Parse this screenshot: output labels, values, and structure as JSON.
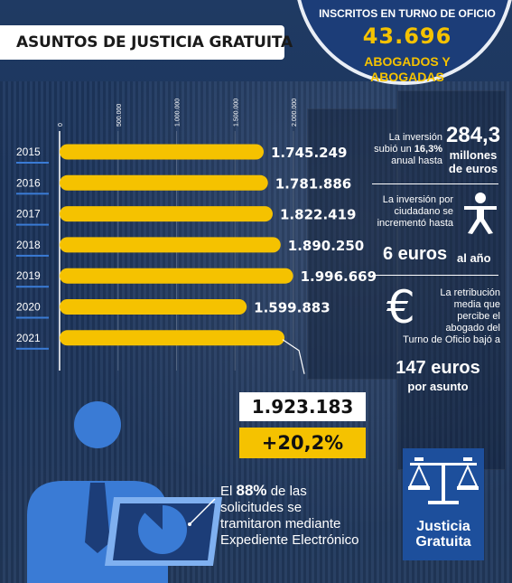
{
  "title": "ASUNTOS DE JUSTICIA GRATUITA",
  "header_circle": {
    "label": "INSCRITOS EN TURNO DE OFICIO",
    "number": "43.696",
    "sub1": "ABOGADOS Y",
    "sub2": "ABOGADAS"
  },
  "chart_data": {
    "type": "bar",
    "orientation": "horizontal",
    "categories": [
      "2015",
      "2016",
      "2017",
      "2018",
      "2019",
      "2020",
      "2021"
    ],
    "values": [
      1745249,
      1781886,
      1822419,
      1890250,
      1996669,
      1599883,
      1923183
    ],
    "value_labels": [
      "1.745.249",
      "1.781.886",
      "1.822.419",
      "1.890.250",
      "1.996.669",
      "1.599.883",
      ""
    ],
    "ticks": [
      0,
      500000,
      1000000,
      1500000,
      2000000
    ],
    "tick_labels": [
      "0",
      "500.000",
      "1.000.000",
      "1.500.000",
      "2.000.000"
    ],
    "xlim": [
      0,
      2000000
    ],
    "bar_color": "#f5c200"
  },
  "callout": {
    "value": "1.923.183",
    "change": "+20,2%"
  },
  "stats": {
    "inv_note1": "La inversión",
    "inv_note2": "subió un",
    "inv_pct": "16,3%",
    "inv_note3": "anual hasta",
    "inv_value": "284,3",
    "inv_unit1": "millones",
    "inv_unit2": "de euros",
    "cit_note1": "La inversión por",
    "cit_note2": "ciudadano se",
    "cit_note3": "incrementó hasta",
    "cit_value": "6 euros",
    "cit_unit": "al año",
    "ret_note1": "La retribución",
    "ret_note2": "media que",
    "ret_note3": "percibe el",
    "ret_note4": "abogado del",
    "ret_note5": "Turno de Oficio bajó a",
    "ret_value": "147 euros",
    "ret_unit": "por asunto"
  },
  "electronic": {
    "line1a": "El",
    "pct": "88%",
    "line1b": "de las",
    "line2": "solicitudes se",
    "line3": "tramitaron mediante",
    "line4": "Expediente Electrónico"
  },
  "logo": {
    "line1": "Justicia",
    "line2": "Gratuita"
  },
  "colors": {
    "accent": "#f5c200",
    "navy": "#1c3d78",
    "logo_blue": "#1d4f9c"
  }
}
